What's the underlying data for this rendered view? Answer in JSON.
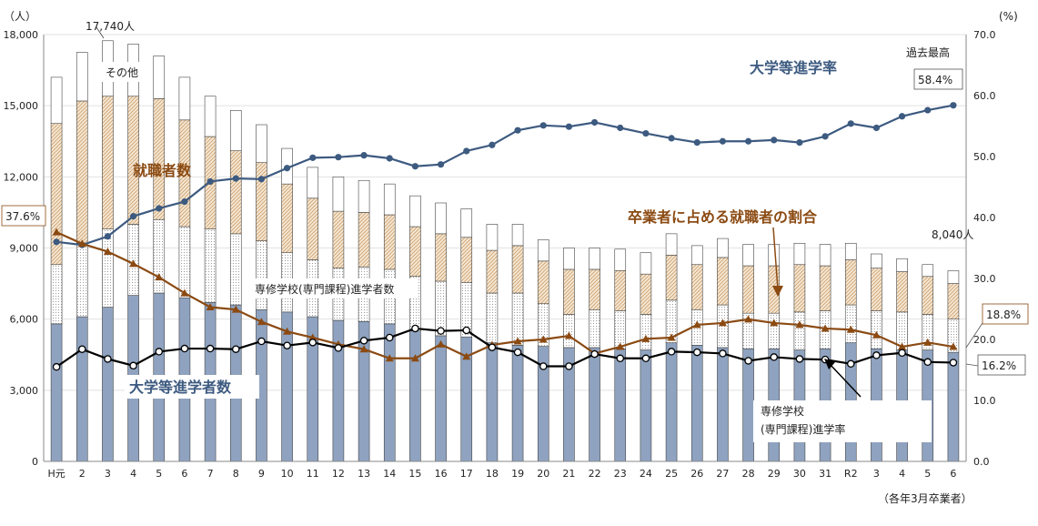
{
  "chart_data": {
    "type": "bar+line",
    "categories": [
      "H元",
      "2",
      "3",
      "4",
      "5",
      "6",
      "7",
      "8",
      "9",
      "10",
      "11",
      "12",
      "13",
      "14",
      "15",
      "16",
      "17",
      "18",
      "19",
      "20",
      "21",
      "22",
      "23",
      "24",
      "25",
      "26",
      "27",
      "28",
      "29",
      "30",
      "31",
      "R2",
      "3",
      "4",
      "5",
      "6"
    ],
    "y_left": {
      "unit": "（人）",
      "min": 0,
      "max": 18000,
      "ticks": [
        "0",
        "3,000",
        "6,000",
        "9,000",
        "12,000",
        "15,000",
        "18,000"
      ]
    },
    "y_right": {
      "unit": "(%)",
      "min": 0,
      "max": 70,
      "ticks": [
        "0.0",
        "10.0",
        "20.0",
        "30.0",
        "40.0",
        "50.0",
        "60.0",
        "70.0"
      ]
    },
    "stacked_bars": [
      {
        "key": "daigaku",
        "color": "#8fa3c0",
        "values": [
          5800,
          6100,
          6500,
          7000,
          7100,
          6900,
          6700,
          6600,
          6400,
          6300,
          6100,
          5950,
          5900,
          5800,
          5500,
          5300,
          5250,
          5000,
          4900,
          4850,
          4800,
          4800,
          4750,
          4700,
          5000,
          4900,
          4800,
          4750,
          4750,
          4700,
          4750,
          5000,
          4750,
          4700,
          4700,
          4600
        ]
      },
      {
        "key": "senshu",
        "color": "#cfcfcf",
        "values": [
          2500,
          3100,
          3300,
          3000,
          3100,
          3000,
          3100,
          3000,
          2900,
          2500,
          2400,
          2200,
          2300,
          2300,
          2300,
          2300,
          2300,
          2100,
          2200,
          1800,
          1400,
          1600,
          1600,
          1500,
          1800,
          1500,
          1800,
          1500,
          1500,
          1600,
          1600,
          1600,
          1600,
          1600,
          1500,
          1400
        ]
      },
      {
        "key": "shushoku",
        "color": "#e9d3b5",
        "values": [
          5950,
          6000,
          5600,
          5400,
          5100,
          4500,
          3900,
          3500,
          3300,
          2900,
          2600,
          2400,
          2300,
          2300,
          2100,
          2000,
          1900,
          1800,
          2000,
          1800,
          1900,
          1700,
          1700,
          1700,
          1900,
          1900,
          2000,
          2000,
          2000,
          2000,
          1900,
          1900,
          1800,
          1700,
          1600,
          1500
        ]
      },
      {
        "key": "sonota",
        "color": "#ffffff",
        "values": [
          1950,
          2050,
          2340,
          2200,
          1800,
          1800,
          1700,
          1700,
          1600,
          1500,
          1300,
          1450,
          1350,
          1300,
          1300,
          1300,
          1200,
          1100,
          900,
          900,
          900,
          900,
          900,
          900,
          900,
          800,
          800,
          900,
          900,
          900,
          900,
          700,
          600,
          550,
          500,
          540
        ]
      }
    ],
    "lines": [
      {
        "key": "daigaku_rate",
        "color": "#3d5a80",
        "marker": "circle-filled",
        "values": [
          36.0,
          35.5,
          36.9,
          40.2,
          41.5,
          42.6,
          45.9,
          46.4,
          46.3,
          48.1,
          49.8,
          49.9,
          50.2,
          49.7,
          48.4,
          48.7,
          50.9,
          51.9,
          54.3,
          55.1,
          54.9,
          55.6,
          54.7,
          53.8,
          53.0,
          52.3,
          52.5,
          52.5,
          52.7,
          52.3,
          53.3,
          55.4,
          54.7,
          56.6,
          57.6,
          58.4
        ]
      },
      {
        "key": "shushoku_rate",
        "color": "#8b4a12",
        "marker": "triangle",
        "values": [
          37.6,
          35.7,
          34.4,
          32.4,
          30.2,
          27.6,
          25.3,
          24.9,
          22.9,
          21.3,
          20.3,
          19.2,
          18.4,
          16.9,
          16.9,
          19.2,
          17.2,
          19.1,
          19.7,
          20.0,
          20.6,
          17.7,
          18.8,
          20.1,
          20.3,
          22.4,
          22.7,
          23.3,
          22.7,
          22.4,
          21.8,
          21.6,
          20.7,
          18.8,
          19.5,
          18.8
        ]
      },
      {
        "key": "senshu_rate",
        "color": "#000000",
        "marker": "circle-open",
        "values": [
          15.5,
          18.4,
          16.8,
          15.7,
          18.0,
          18.5,
          18.5,
          18.4,
          19.7,
          19.0,
          19.5,
          18.6,
          19.8,
          20.3,
          21.8,
          21.4,
          21.5,
          18.7,
          17.9,
          15.6,
          15.6,
          17.6,
          16.9,
          16.9,
          18.0,
          17.9,
          17.7,
          16.5,
          17.1,
          16.8,
          16.7,
          16.0,
          17.4,
          17.8,
          16.3,
          16.2
        ]
      }
    ],
    "labels": {
      "sonota": "その他",
      "shushoku_count": "就職者数",
      "senshu_count": "専修学校(専門課程)進学者数",
      "daigaku_count": "大学等進学者数",
      "daigaku_rate": "大学等進学率",
      "shushoku_rate": "卒業者に占める就職者の割合",
      "senshu_rate_line1": "専修学校",
      "senshu_rate_line2": "(専門課程)進学率",
      "max_total": "17,740人",
      "last_total": "8,040人",
      "record_high": "過去最高",
      "record_value": "58.4%",
      "first_shushoku": "37.6%",
      "last_shushoku": "18.8%",
      "last_senshu": "16.2%",
      "footnote": "（各年3月卒業者）"
    }
  }
}
